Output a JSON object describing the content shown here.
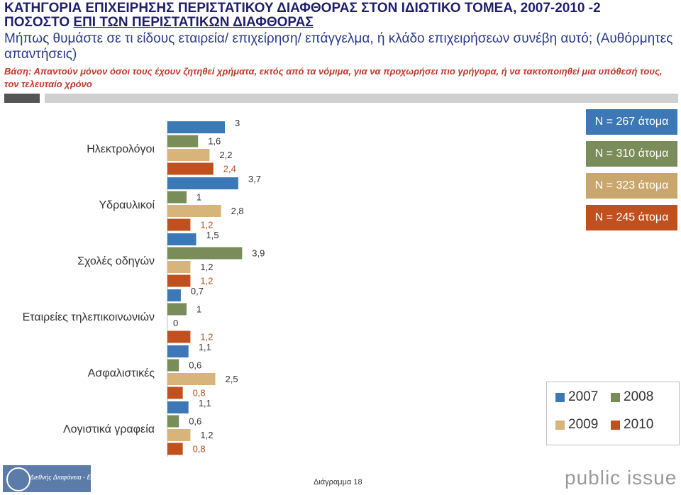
{
  "header": {
    "title_line1": "ΚΑΤΗΓΟΡΙΑ ΕΠΙΧΕΙΡΗΣΗΣ ΠΕΡΙΣΤΑΤΙΚΟΥ ΔΙΑΦΘΟΡΑΣ ΣΤΟΝ ΙΔΙΩΤΙΚΟ ΤΟΜΕΑ, 2007-2010 -2",
    "title_line2_prefix": "ΠΟΣΟΣΤΟ ",
    "title_line2_underlined": "ΕΠΙ ΤΩΝ ΠΕΡΙΣΤΑΤΙΚΩΝ ΔΙΑΦΘΟΡΑΣ",
    "question": "Μήπως θυμάστε σε τι είδους εταιρεία/ επιχείρηση/ επάγγελμα, ή κλάδο επιχειρήσεων συνέβη αυτό; (Αυθόρμητες απαντήσεις)",
    "base": "Βάση: Απαντούν μόνον όσοι τους έχουν ζητηθεί χρήματα, εκτός από τα νόμιμα, για να προχωρήσει πιο γρήγορα, ή να τακτοποιηθεί μια υπόθεσή τους, τον τελευταίο χρόνο"
  },
  "sample_sizes": [
    {
      "label": "N = 267 άτομα",
      "color": "#3b78b5"
    },
    {
      "label": "N = 310 άτομα",
      "color": "#7a8c5a"
    },
    {
      "label": "N = 323 άτομα",
      "color": "#c9a66b"
    },
    {
      "label": "N = 245 άτομα",
      "color": "#c0511e"
    }
  ],
  "chart_data": {
    "type": "bar",
    "orientation": "horizontal",
    "categories": [
      "Ηλεκτρολόγοι",
      "Υδραυλικοί",
      "Σχολές οδηγών",
      "Εταιρείες τηλεπικοινωνιών",
      "Ασφαλιστικές",
      "Λογιστικά γραφεία"
    ],
    "series": [
      {
        "name": "2007",
        "color": "#3b78b5",
        "values": [
          3,
          3.7,
          1.5,
          0.7,
          1.1,
          1.1
        ],
        "labels": [
          "3",
          "3,7",
          "1,5",
          "0,7",
          "1,1",
          "1,1"
        ]
      },
      {
        "name": "2008",
        "color": "#7a8c5a",
        "values": [
          1.6,
          1,
          3.9,
          1,
          0.6,
          0.6
        ],
        "labels": [
          "1,6",
          "1",
          "3,9",
          "1",
          "0,6",
          "0,6"
        ]
      },
      {
        "name": "2009",
        "color": "#d6b47a",
        "values": [
          2.2,
          2.8,
          1.2,
          0,
          2.5,
          1.2
        ],
        "labels": [
          "2,2",
          "2,8",
          "1,2",
          "0",
          "2,5",
          "1,2"
        ]
      },
      {
        "name": "2010",
        "color": "#c0511e",
        "values": [
          2.4,
          1.2,
          1.2,
          1.2,
          0.8,
          0.8
        ],
        "labels": [
          "2,4",
          "1,2",
          "1,2",
          "1,2",
          "0,8",
          "0,8"
        ]
      }
    ],
    "legend_position": "bottom-right"
  },
  "footer": {
    "page_label": "Διάγραμμα 18",
    "logo_left_text": "Διεθνής Διαφάνεια - Ελλάς",
    "logo_right_text": "public issue"
  }
}
